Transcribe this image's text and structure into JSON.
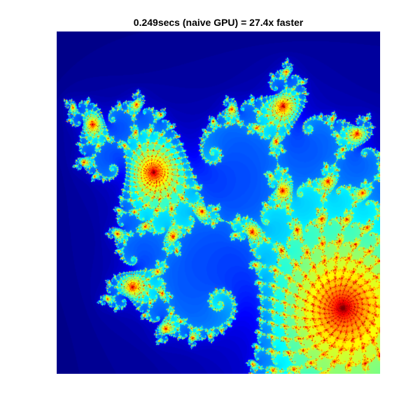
{
  "figure": {
    "title": "0.249secs (naive GPU) = 27.4x faster",
    "colormap": "jet",
    "axes_visible": false
  }
}
